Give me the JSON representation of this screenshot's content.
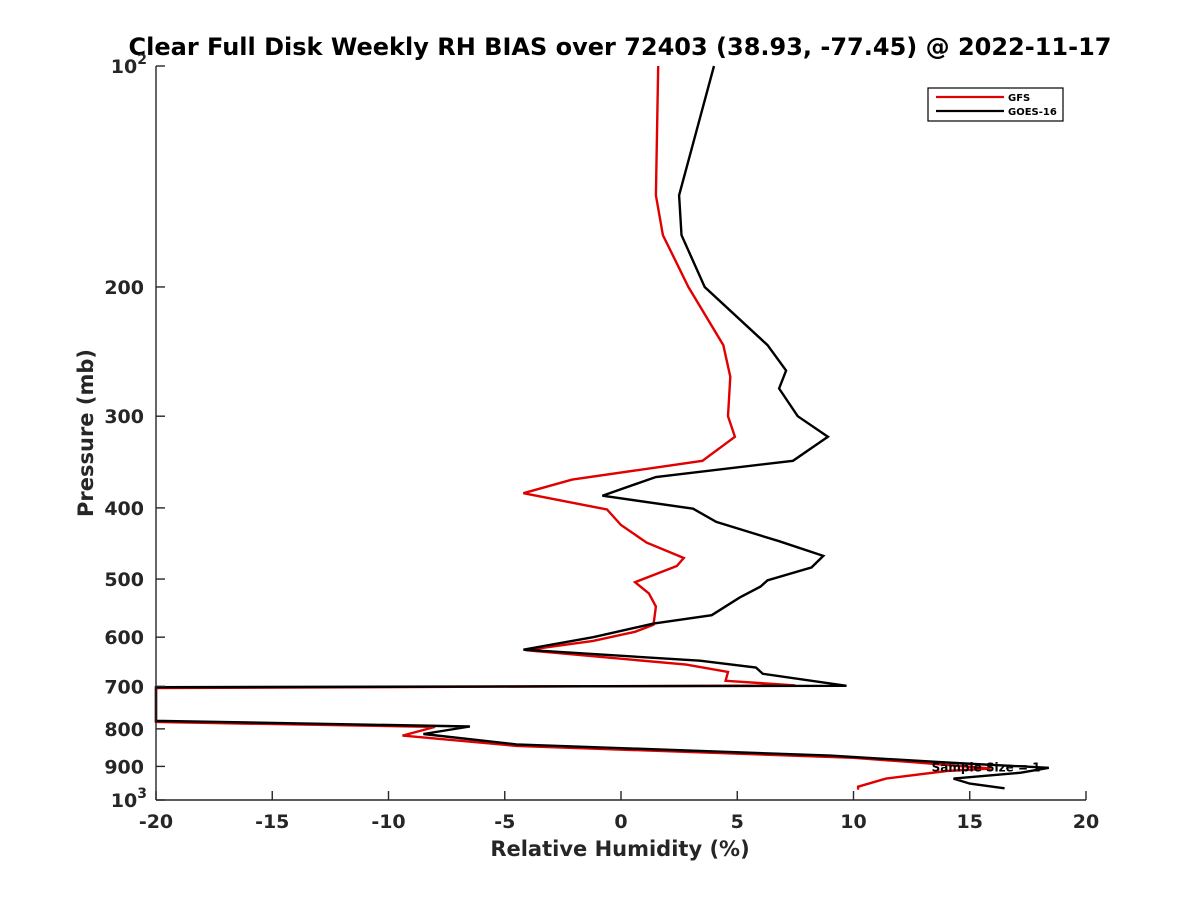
{
  "chart_data": {
    "type": "line",
    "title": "Clear Full Disk Weekly RH BIAS over 72403 (38.93, -77.45) @ 2022-11-17",
    "xlabel": "Relative Humidity (%)",
    "ylabel": "Pressure (mb)",
    "xlim": [
      -20,
      20
    ],
    "ylim": [
      100,
      1000
    ],
    "y_scale": "log",
    "y_reversed": true,
    "x_ticks": [
      -20,
      -15,
      -10,
      -5,
      0,
      5,
      10,
      15,
      20
    ],
    "x_tick_labels": [
      "-20",
      "-15",
      "-10",
      "-5",
      "0",
      "5",
      "10",
      "15",
      "20"
    ],
    "y_ticks": [
      {
        "value": 100,
        "base": "10",
        "exp": "2"
      },
      {
        "value": 200,
        "label": "200"
      },
      {
        "value": 300,
        "label": "300"
      },
      {
        "value": 400,
        "label": "400"
      },
      {
        "value": 500,
        "label": "500"
      },
      {
        "value": 600,
        "label": "600"
      },
      {
        "value": 700,
        "label": "700"
      },
      {
        "value": 800,
        "label": "800"
      },
      {
        "value": 900,
        "label": "900"
      },
      {
        "value": 1000,
        "base": "10",
        "exp": "3"
      }
    ],
    "grid": false,
    "legend_position": "top-right",
    "annotation": {
      "text": "Sample Size = 1",
      "x": 12.5,
      "y": 900
    },
    "series": [
      {
        "name": "GFS",
        "color": "#e00000",
        "points": [
          [
            1.6,
            100
          ],
          [
            1.5,
            150
          ],
          [
            1.8,
            170
          ],
          [
            2.9,
            200
          ],
          [
            4.4,
            240
          ],
          [
            4.7,
            265
          ],
          [
            4.6,
            300
          ],
          [
            4.9,
            320
          ],
          [
            3.5,
            345
          ],
          [
            -2.1,
            366
          ],
          [
            -4.2,
            382
          ],
          [
            -0.6,
            402
          ],
          [
            0.0,
            422
          ],
          [
            1.1,
            446
          ],
          [
            2.7,
            468
          ],
          [
            2.4,
            480
          ],
          [
            0.6,
            505
          ],
          [
            1.2,
            523
          ],
          [
            1.5,
            545
          ],
          [
            1.4,
            577
          ],
          [
            0.6,
            590
          ],
          [
            -1.2,
            607
          ],
          [
            -4.1,
            625
          ],
          [
            2.8,
            654
          ],
          [
            4.6,
            669
          ],
          [
            4.5,
            688
          ],
          [
            7.5,
            698
          ],
          [
            -20,
            704
          ],
          [
            -20,
            783
          ],
          [
            -8.0,
            795
          ],
          [
            -9.4,
            817
          ],
          [
            -4.5,
            844
          ],
          [
            10.0,
            876
          ],
          [
            12.5,
            888
          ],
          [
            15.9,
            906
          ],
          [
            14.0,
            913
          ],
          [
            11.4,
            935
          ],
          [
            10.2,
            959
          ],
          [
            10.2,
            968
          ]
        ]
      },
      {
        "name": "GOES-16",
        "color": "#000000",
        "points": [
          [
            4.0,
            100
          ],
          [
            2.5,
            150
          ],
          [
            2.6,
            170
          ],
          [
            3.6,
            200
          ],
          [
            6.3,
            240
          ],
          [
            7.1,
            260
          ],
          [
            6.8,
            275
          ],
          [
            7.6,
            300
          ],
          [
            8.9,
            320
          ],
          [
            7.4,
            345
          ],
          [
            1.5,
            363
          ],
          [
            -0.8,
            385
          ],
          [
            3.1,
            401
          ],
          [
            4.1,
            418
          ],
          [
            6.8,
            444
          ],
          [
            8.7,
            465
          ],
          [
            8.2,
            482
          ],
          [
            6.3,
            502
          ],
          [
            6.0,
            512
          ],
          [
            5.1,
            530
          ],
          [
            3.9,
            560
          ],
          [
            1.4,
            575
          ],
          [
            -1.2,
            600
          ],
          [
            -4.2,
            624
          ],
          [
            3.4,
            646
          ],
          [
            5.8,
            660
          ],
          [
            6.1,
            673
          ],
          [
            9.7,
            699
          ],
          [
            -20,
            702
          ],
          [
            -20,
            780
          ],
          [
            -6.5,
            794
          ],
          [
            -8.5,
            813
          ],
          [
            -4.5,
            840
          ],
          [
            9.0,
            870
          ],
          [
            14.0,
            889
          ],
          [
            18.4,
            904
          ],
          [
            17.2,
            918
          ],
          [
            14.3,
            935
          ],
          [
            15.0,
            950
          ],
          [
            16.5,
            964
          ]
        ]
      }
    ]
  }
}
